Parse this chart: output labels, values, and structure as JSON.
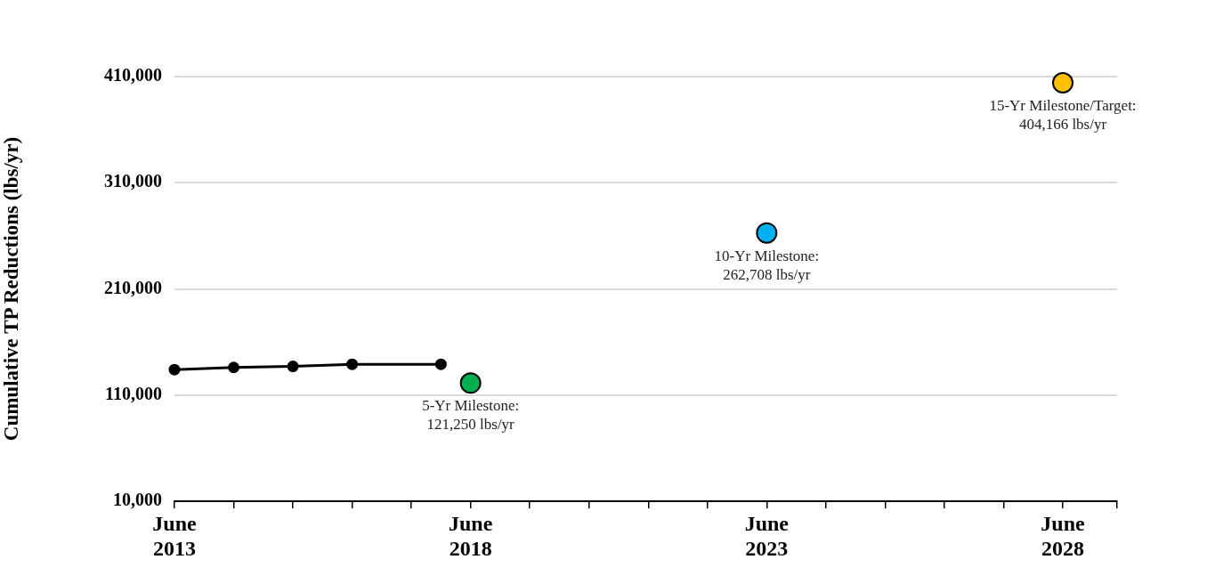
{
  "chart_data": {
    "type": "line",
    "ylabel": "Cumulative TP Reductions (lbs/yr)",
    "series": [
      {
        "color": "#000000",
        "x": [
          "2013-06",
          "2014-06",
          "2015-06",
          "2016-06",
          "2017-12"
        ],
        "values": [
          134000,
          136000,
          137000,
          139000,
          139000
        ],
        "marker": "circle"
      },
      {
        "type": "scatter",
        "colors": [
          "#00b050",
          "#00b0f0",
          "#ffc000"
        ],
        "x": [
          "2018-06",
          "2023-06",
          "2028-06"
        ],
        "values": [
          121250,
          262708,
          404166
        ],
        "marker": "circle"
      }
    ],
    "xlim": [
      "2013-06",
      "2029-05"
    ],
    "xticks": [
      {
        "value": "2013-06",
        "label": "June\n2013"
      },
      {
        "value": "2014-06",
        "label": null
      },
      {
        "value": "2015-06",
        "label": null
      },
      {
        "value": "2016-06",
        "label": null
      },
      {
        "value": "2017-06",
        "label": null
      },
      {
        "value": "2018-06",
        "label": "June\n2018"
      },
      {
        "value": "2019-06",
        "label": null
      },
      {
        "value": "2020-06",
        "label": null
      },
      {
        "value": "2021-06",
        "label": null
      },
      {
        "value": "2022-06",
        "label": null
      },
      {
        "value": "2023-06",
        "label": "June\n2023"
      },
      {
        "value": "2024-06",
        "label": null
      },
      {
        "value": "2025-06",
        "label": null
      },
      {
        "value": "2026-06",
        "label": null
      },
      {
        "value": "2027-06",
        "label": null
      },
      {
        "value": "2028-06",
        "label": "June\n2028"
      },
      {
        "value": "2029-05",
        "label": null
      }
    ],
    "ylim": [
      10000,
      410000
    ],
    "yticks": [
      {
        "value": 10000,
        "label": "10,000"
      },
      {
        "value": 110000,
        "label": "110,000"
      },
      {
        "value": 210000,
        "label": "210,000"
      },
      {
        "value": 310000,
        "label": "310,000"
      },
      {
        "value": 410000,
        "label": "410,000"
      }
    ],
    "grid": "y",
    "annotations": [
      {
        "text": "5-Yr Milestone:\n121,250 lbs/yr",
        "x": "2018-06",
        "y": 121250
      },
      {
        "text": "10-Yr Milestone:\n262,708 lbs/yr",
        "x": "2023-06",
        "y": 262708
      },
      {
        "text": "15-Yr Milestone/Target:\n404,166 lbs/yr",
        "x": "2028-06",
        "y": 404166
      }
    ]
  }
}
